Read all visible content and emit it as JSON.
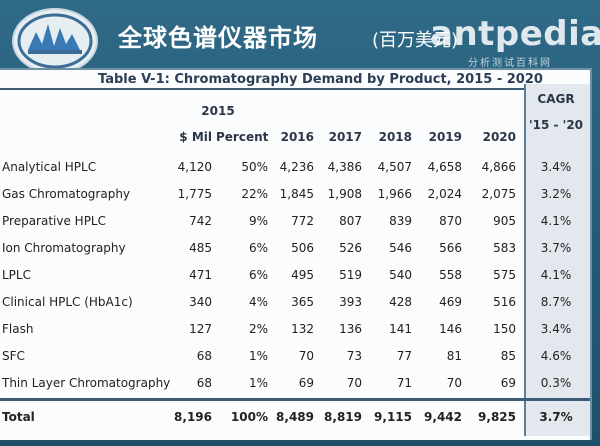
{
  "header": {
    "title": "全球色谱仪器市场",
    "subtitle": "(百万美元)",
    "watermark": "antpedia",
    "watermark_sub": "分析测试百科网"
  },
  "table": {
    "caption": "Table V-1: Chromatography Demand by Product, 2015 - 2020",
    "group_header_2015": "2015",
    "cagr_header": [
      "CAGR",
      "'15 - '20"
    ],
    "columns": [
      "$ Mil",
      "Percent",
      "2016",
      "2017",
      "2018",
      "2019",
      "2020"
    ],
    "rows": [
      {
        "label": "Analytical HPLC",
        "values": [
          "4,120",
          "50%",
          "4,236",
          "4,386",
          "4,507",
          "4,658",
          "4,866"
        ],
        "cagr": "3.4%"
      },
      {
        "label": "Gas Chromatography",
        "values": [
          "1,775",
          "22%",
          "1,845",
          "1,908",
          "1,966",
          "2,024",
          "2,075"
        ],
        "cagr": "3.2%"
      },
      {
        "label": "Preparative HPLC",
        "values": [
          "742",
          "9%",
          "772",
          "807",
          "839",
          "870",
          "905"
        ],
        "cagr": "4.1%"
      },
      {
        "label": "Ion Chromatography",
        "values": [
          "485",
          "6%",
          "506",
          "526",
          "546",
          "566",
          "583"
        ],
        "cagr": "3.7%"
      },
      {
        "label": "LPLC",
        "values": [
          "471",
          "6%",
          "495",
          "519",
          "540",
          "558",
          "575"
        ],
        "cagr": "4.1%"
      },
      {
        "label": "Clinical HPLC (HbA1c)",
        "values": [
          "340",
          "4%",
          "365",
          "393",
          "428",
          "469",
          "516"
        ],
        "cagr": "8.7%"
      },
      {
        "label": "Flash",
        "values": [
          "127",
          "2%",
          "132",
          "136",
          "141",
          "146",
          "150"
        ],
        "cagr": "3.4%"
      },
      {
        "label": "SFC",
        "values": [
          "68",
          "1%",
          "70",
          "73",
          "77",
          "81",
          "85"
        ],
        "cagr": "4.6%"
      },
      {
        "label": "Thin Layer Chromatography",
        "values": [
          "68",
          "1%",
          "69",
          "70",
          "71",
          "70",
          "69"
        ],
        "cagr": "0.3%"
      }
    ],
    "total": {
      "label": "Total",
      "values": [
        "8,196",
        "100%",
        "8,489",
        "8,819",
        "9,115",
        "9,442",
        "9,825"
      ],
      "cagr": "3.7%"
    }
  }
}
